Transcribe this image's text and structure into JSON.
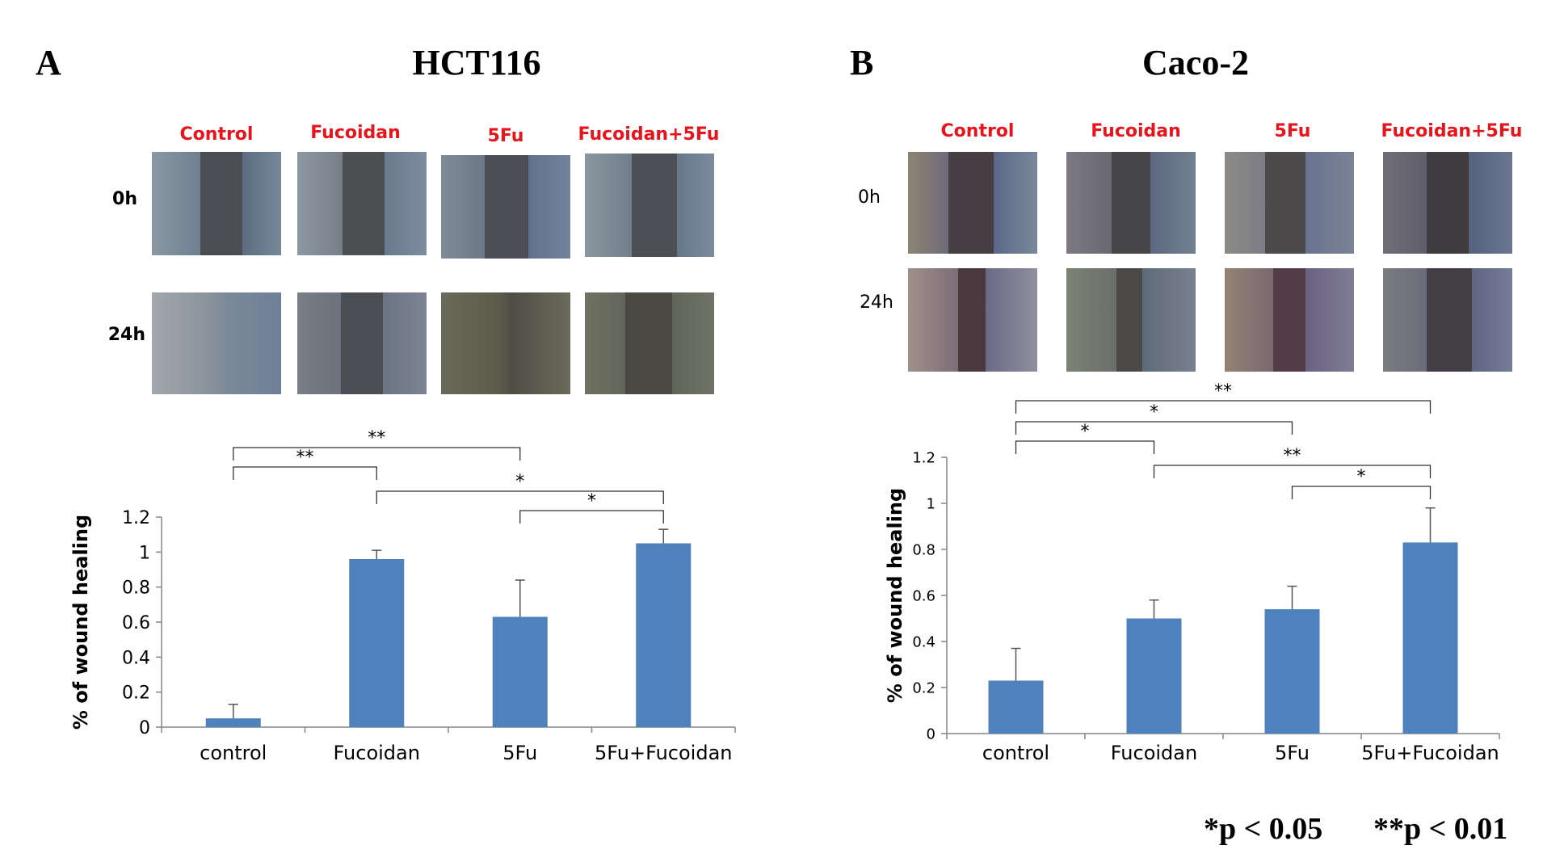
{
  "panel_a": {
    "letter": "A",
    "title": "HCT116",
    "columns": [
      "Control",
      "Fucoidan",
      "5Fu",
      "Fucoidan+5Fu"
    ],
    "rows": [
      "0h",
      "24h"
    ]
  },
  "panel_b": {
    "letter": "B",
    "title": "Caco-2",
    "columns": [
      "Control",
      "Fucoidan",
      "5Fu",
      "Fucoidan+5Fu"
    ],
    "rows": [
      "0h",
      "24h"
    ]
  },
  "footnote": {
    "p05": "*p < 0.05",
    "p01": "**p < 0.01"
  },
  "colors": {
    "bar": "#4f81bd",
    "label_red": "#e8141b",
    "axis": "#868686"
  },
  "chart_data": [
    {
      "type": "bar",
      "title": "HCT116",
      "categories": [
        "control",
        "Fucoidan",
        "5Fu",
        "5Fu+Fucoidan"
      ],
      "values": [
        0.05,
        0.96,
        0.63,
        1.05
      ],
      "errors": [
        0.08,
        0.05,
        0.21,
        0.08
      ],
      "ylabel": "% of wound healing",
      "ylim": [
        0,
        1.2
      ],
      "yticks": [
        0,
        0.2,
        0.4,
        0.6,
        0.8,
        1,
        1.2
      ],
      "ytick_labels": [
        "0",
        "0.2",
        "0.4",
        "0.6",
        "0.8",
        "1",
        "1.2"
      ],
      "significance": [
        {
          "from": 0,
          "to": 2,
          "label": "**"
        },
        {
          "from": 0,
          "to": 1,
          "label": "**"
        },
        {
          "from": 1,
          "to": 3,
          "label": "*"
        },
        {
          "from": 2,
          "to": 3,
          "label": "*"
        }
      ]
    },
    {
      "type": "bar",
      "title": "Caco-2",
      "categories": [
        "control",
        "Fucoidan",
        "5Fu",
        "5Fu+Fucoidan"
      ],
      "values": [
        0.23,
        0.5,
        0.54,
        0.83
      ],
      "errors": [
        0.14,
        0.08,
        0.1,
        0.15
      ],
      "ylabel": "% of wound healing",
      "ylim": [
        0,
        1.2
      ],
      "yticks": [
        0,
        0.2,
        0.4,
        0.6,
        0.8,
        1,
        1.2
      ],
      "ytick_labels": [
        "0",
        "0.2",
        "0.4",
        "0.6",
        "0.8",
        "1",
        "1.2"
      ],
      "significance": [
        {
          "from": 0,
          "to": 3,
          "label": "**"
        },
        {
          "from": 0,
          "to": 2,
          "label": "*"
        },
        {
          "from": 0,
          "to": 1,
          "label": "*"
        },
        {
          "from": 1,
          "to": 3,
          "label": "**"
        },
        {
          "from": 2,
          "to": 3,
          "label": "*"
        }
      ]
    }
  ]
}
